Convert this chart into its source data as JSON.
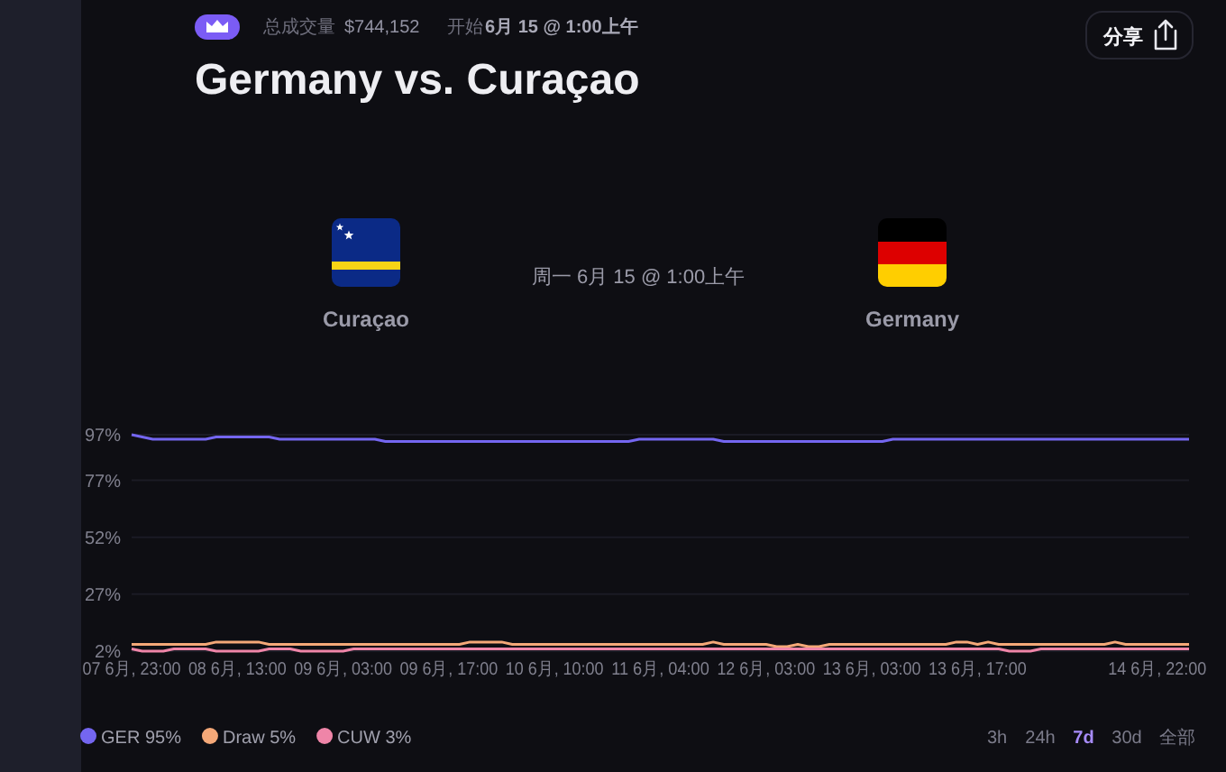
{
  "chart_data": {
    "type": "line",
    "title": "Germany vs. Curaçao",
    "annotations": [
      "总成交量",
      "$744,152",
      "开始",
      "6月 15 @ 1:00上午",
      "周一 6月 15 @ 1:00上午",
      "Curaçao",
      "Germany",
      "分享",
      "3h",
      "24h",
      "7d",
      "30d",
      "全部"
    ],
    "categories": [
      "07 6月, 23:00",
      null,
      null,
      null,
      null,
      null,
      null,
      null,
      null,
      null,
      "08 6月, 13:00",
      null,
      null,
      null,
      null,
      null,
      null,
      null,
      null,
      null,
      "09 6月, 03:00",
      null,
      null,
      null,
      null,
      null,
      null,
      null,
      null,
      null,
      "09 6月, 17:00",
      null,
      null,
      null,
      null,
      null,
      null,
      null,
      null,
      null,
      "10 6月, 10:00",
      null,
      null,
      null,
      null,
      null,
      null,
      null,
      null,
      null,
      "11 6月, 04:00",
      null,
      null,
      null,
      null,
      null,
      null,
      null,
      null,
      null,
      "12 6月, 03:00",
      null,
      null,
      null,
      null,
      null,
      null,
      null,
      null,
      null,
      "13 6月, 03:00",
      null,
      null,
      null,
      null,
      null,
      null,
      null,
      null,
      null,
      "13 6月, 17:00",
      null,
      null,
      null,
      null,
      null,
      null,
      null,
      null,
      null,
      null,
      null,
      null,
      null,
      null,
      null,
      null,
      "14 6月, 22:00",
      null,
      null,
      null
    ],
    "series": [
      {
        "name": "GER 95%",
        "color": "#7466f0",
        "values": [
          97,
          96,
          95,
          95,
          95,
          95,
          95,
          95,
          96,
          96,
          96,
          96,
          96,
          96,
          95,
          95,
          95,
          95,
          95,
          95,
          95,
          95,
          95,
          95,
          94,
          94,
          94,
          94,
          94,
          94,
          94,
          94,
          94,
          94,
          94,
          94,
          94,
          94,
          94,
          94,
          94,
          94,
          94,
          94,
          94,
          94,
          94,
          94,
          95,
          95,
          95,
          95,
          95,
          95,
          95,
          95,
          94,
          94,
          94,
          94,
          94,
          94,
          94,
          94,
          94,
          94,
          94,
          94,
          94,
          94,
          94,
          94,
          95,
          95,
          95,
          95,
          95,
          95,
          95,
          95,
          95,
          95,
          95,
          95,
          95,
          95,
          95,
          95,
          95,
          95,
          95,
          95,
          95,
          95,
          95,
          95,
          95,
          95,
          95,
          95,
          95
        ]
      },
      {
        "name": "Draw 5%",
        "color": "#f4a878",
        "values": [
          5,
          5,
          5,
          5,
          5,
          5,
          5,
          5,
          6,
          6,
          6,
          6,
          6,
          5,
          5,
          5,
          5,
          5,
          5,
          5,
          5,
          5,
          5,
          5,
          5,
          5,
          5,
          5,
          5,
          5,
          5,
          5,
          6,
          6,
          6,
          6,
          5,
          5,
          5,
          5,
          5,
          5,
          5,
          5,
          5,
          5,
          5,
          5,
          5,
          5,
          5,
          5,
          5,
          5,
          5,
          6,
          5,
          5,
          5,
          5,
          5,
          4,
          4,
          5,
          4,
          4,
          5,
          5,
          5,
          5,
          5,
          5,
          5,
          5,
          5,
          5,
          5,
          5,
          6,
          6,
          5,
          6,
          5,
          5,
          5,
          5,
          5,
          5,
          5,
          5,
          5,
          5,
          5,
          6,
          5,
          5,
          5,
          5,
          5,
          5,
          5
        ]
      },
      {
        "name": "CUW 3%",
        "color": "#ef85a8",
        "values": [
          3,
          2,
          2,
          2,
          3,
          3,
          3,
          3,
          2,
          2,
          2,
          2,
          2,
          3,
          3,
          3,
          2,
          2,
          2,
          2,
          2,
          3,
          3,
          3,
          3,
          3,
          3,
          3,
          3,
          3,
          3,
          3,
          3,
          3,
          3,
          3,
          3,
          3,
          3,
          3,
          3,
          3,
          3,
          3,
          3,
          3,
          3,
          3,
          3,
          3,
          3,
          3,
          3,
          3,
          3,
          3,
          3,
          3,
          3,
          3,
          3,
          3,
          3,
          3,
          3,
          3,
          3,
          3,
          3,
          3,
          3,
          3,
          3,
          3,
          3,
          3,
          3,
          3,
          3,
          3,
          3,
          3,
          3,
          2,
          2,
          2,
          3,
          3,
          3,
          3,
          3,
          3,
          3,
          3,
          3,
          3,
          3,
          3,
          3,
          3,
          3
        ]
      }
    ],
    "ylim": [
      2,
      97
    ],
    "yticks": [
      {
        "value": 2,
        "label": "2%"
      },
      {
        "value": 27,
        "label": "27%"
      },
      {
        "value": 52,
        "label": "52%"
      },
      {
        "value": 77,
        "label": "77%"
      },
      {
        "value": 97,
        "label": "97%"
      }
    ],
    "grid": "y",
    "legend": "bottom left"
  }
}
